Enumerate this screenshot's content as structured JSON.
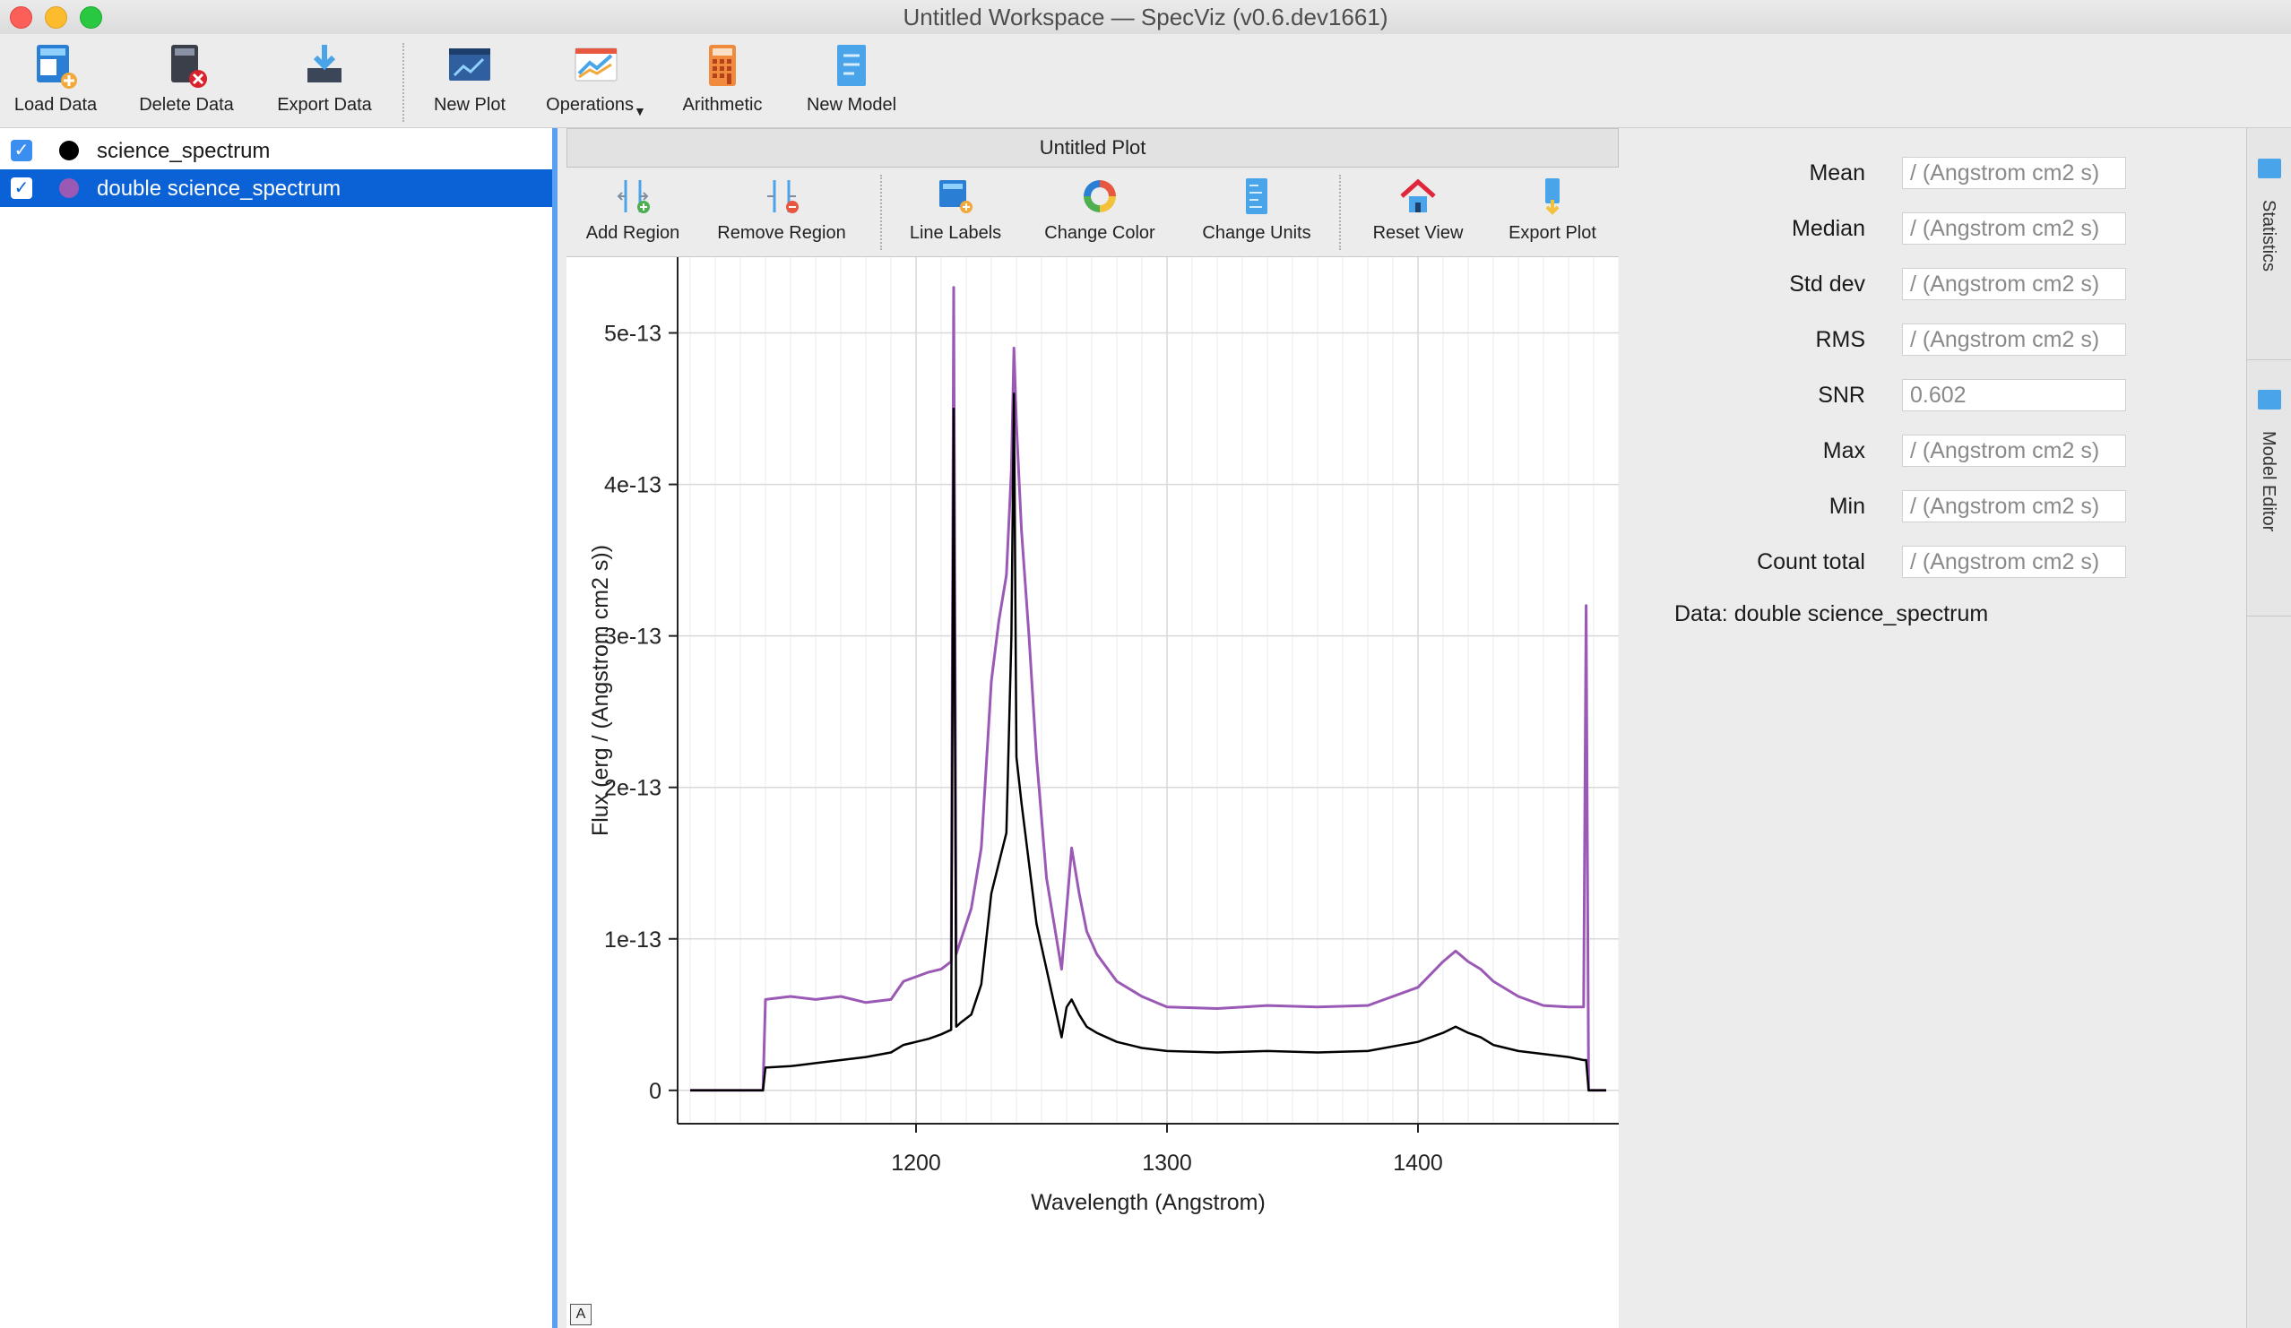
{
  "window": {
    "title": "Untitled Workspace — SpecViz (v0.6.dev1661)"
  },
  "toolbar": {
    "load_data": "Load Data",
    "delete_data": "Delete Data",
    "export_data": "Export Data",
    "new_plot": "New Plot",
    "operations": "Operations",
    "arithmetic": "Arithmetic",
    "new_model": "New Model"
  },
  "data_list": [
    {
      "label": "science_spectrum",
      "checked": true,
      "color": "#000000",
      "selected": false
    },
    {
      "label": "double science_spectrum",
      "checked": true,
      "color": "#9b59b6",
      "selected": true
    }
  ],
  "plot": {
    "title": "Untitled Plot",
    "toolbar": {
      "add_region": "Add Region",
      "remove_region": "Remove Region",
      "line_labels": "Line Labels",
      "change_color": "Change Color",
      "change_units": "Change Units",
      "reset_view": "Reset View",
      "export_plot": "Export Plot"
    },
    "autoscale_label": "A"
  },
  "chart_data": {
    "type": "line",
    "title": "",
    "xlabel": "Wavelength (Angstrom)",
    "ylabel": "Flux (erg / (Angstrom cm2 s))",
    "xlim": [
      1105,
      1480
    ],
    "ylim": [
      -2.2e-14,
      5.5e-13
    ],
    "xticks": [
      1200,
      1300,
      1400
    ],
    "xtick_labels": [
      "1200",
      "1300",
      "1400"
    ],
    "yticks": [
      0,
      1e-13,
      2e-13,
      3e-13,
      4e-13,
      5e-13
    ],
    "ytick_labels": [
      "0",
      "1e-13",
      "2e-13",
      "3e-13",
      "4e-13",
      "5e-13"
    ],
    "grid": true,
    "series": [
      {
        "color": "#9b59b6",
        "x": [
          1110,
          1139,
          1140,
          1150,
          1160,
          1170,
          1180,
          1190,
          1195,
          1200,
          1205,
          1210,
          1214,
          1215,
          1216,
          1218,
          1222,
          1226,
          1230,
          1233,
          1236,
          1238,
          1239,
          1240,
          1242,
          1245,
          1248,
          1252,
          1256,
          1258,
          1260,
          1262,
          1265,
          1268,
          1272,
          1280,
          1290,
          1300,
          1320,
          1340,
          1360,
          1380,
          1400,
          1410,
          1415,
          1420,
          1425,
          1430,
          1440,
          1450,
          1460,
          1466,
          1467,
          1468,
          1475
        ],
        "y": [
          0,
          0,
          6e-14,
          6.2e-14,
          6e-14,
          6.2e-14,
          5.8e-14,
          6e-14,
          7.2e-14,
          7.5e-14,
          7.8e-14,
          8e-14,
          8.5e-14,
          5.3e-13,
          9e-14,
          1e-13,
          1.2e-13,
          1.6e-13,
          2.7e-13,
          3.1e-13,
          3.4e-13,
          4.1e-13,
          4.9e-13,
          4.4e-13,
          3.7e-13,
          3e-13,
          2.2e-13,
          1.4e-13,
          1e-13,
          8e-14,
          1.2e-13,
          1.6e-13,
          1.3e-13,
          1.05e-13,
          9e-14,
          7.2e-14,
          6.2e-14,
          5.5e-14,
          5.4e-14,
          5.6e-14,
          5.5e-14,
          5.6e-14,
          6.8e-14,
          8.5e-14,
          9.2e-14,
          8.5e-14,
          8e-14,
          7.2e-14,
          6.2e-14,
          5.6e-14,
          5.5e-14,
          5.5e-14,
          3.2e-13,
          0,
          0
        ]
      },
      {
        "color": "#000000",
        "x": [
          1110,
          1139,
          1140,
          1150,
          1160,
          1170,
          1180,
          1190,
          1195,
          1200,
          1205,
          1210,
          1214,
          1215,
          1216,
          1218,
          1222,
          1226,
          1230,
          1233,
          1236,
          1238,
          1239,
          1240,
          1242,
          1245,
          1248,
          1252,
          1256,
          1258,
          1260,
          1262,
          1265,
          1268,
          1272,
          1280,
          1290,
          1300,
          1320,
          1340,
          1360,
          1380,
          1400,
          1410,
          1415,
          1420,
          1425,
          1430,
          1440,
          1450,
          1460,
          1466,
          1467,
          1468,
          1475
        ],
        "y": [
          0,
          0,
          1.5e-14,
          1.6e-14,
          1.8e-14,
          2e-14,
          2.2e-14,
          2.5e-14,
          3e-14,
          3.2e-14,
          3.4e-14,
          3.7e-14,
          4e-14,
          4.5e-13,
          4.2e-14,
          4.5e-14,
          5e-14,
          7e-14,
          1.3e-13,
          1.5e-13,
          1.7e-13,
          3e-13,
          4.6e-13,
          2.2e-13,
          1.9e-13,
          1.5e-13,
          1.1e-13,
          8e-14,
          5e-14,
          3.5e-14,
          5.5e-14,
          6e-14,
          5e-14,
          4.2e-14,
          3.8e-14,
          3.2e-14,
          2.8e-14,
          2.6e-14,
          2.5e-14,
          2.6e-14,
          2.5e-14,
          2.6e-14,
          3.2e-14,
          3.8e-14,
          4.2e-14,
          3.8e-14,
          3.5e-14,
          3e-14,
          2.6e-14,
          2.4e-14,
          2.2e-14,
          2e-14,
          2e-14,
          0,
          0
        ]
      }
    ]
  },
  "statistics": {
    "rows": [
      {
        "label": "Mean",
        "value": "/ (Angstrom cm2 s)"
      },
      {
        "label": "Median",
        "value": "/ (Angstrom cm2 s)"
      },
      {
        "label": "Std dev",
        "value": "/ (Angstrom cm2 s)"
      },
      {
        "label": "RMS",
        "value": "/ (Angstrom cm2 s)"
      },
      {
        "label": "SNR",
        "value": "0.602"
      },
      {
        "label": "Max",
        "value": "/ (Angstrom cm2 s)"
      },
      {
        "label": "Min",
        "value": "/ (Angstrom cm2 s)"
      },
      {
        "label": "Count total",
        "value": "/ (Angstrom cm2 s)"
      }
    ],
    "data_text": "Data: double science_spectrum"
  },
  "side_tabs": {
    "statistics": "Statistics",
    "model_editor": "Model Editor"
  }
}
